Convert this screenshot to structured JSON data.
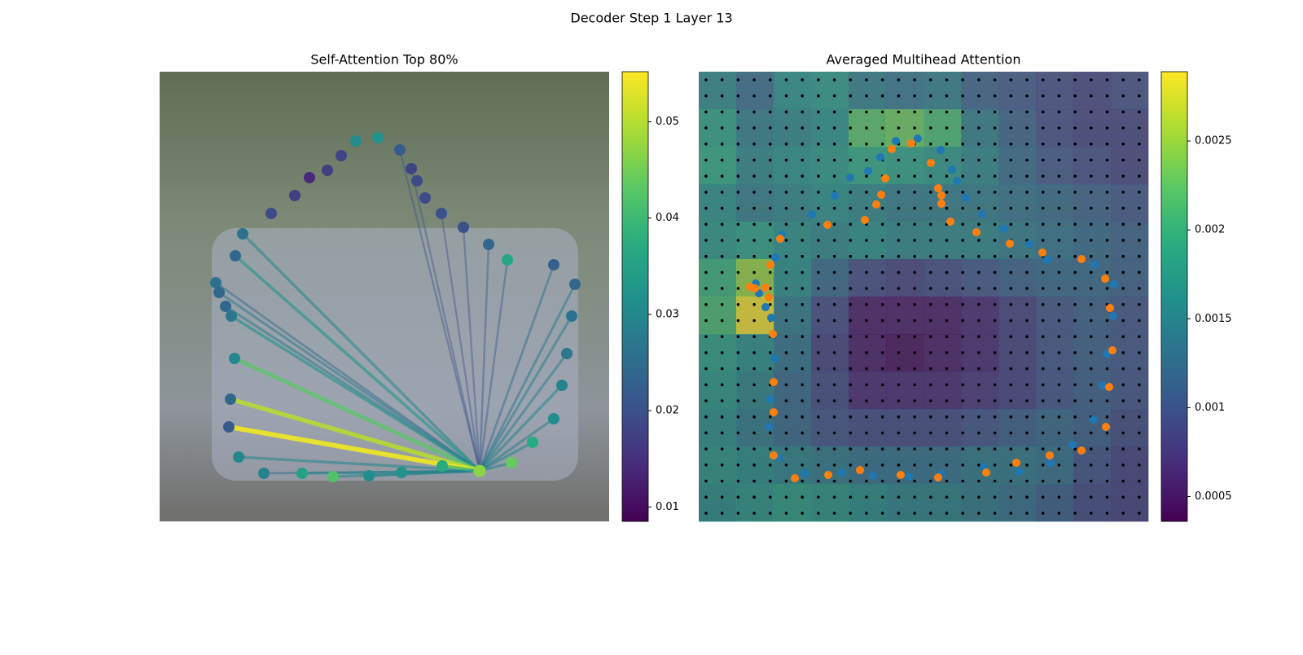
{
  "title": "Decoder Step 1 Layer 13",
  "chart_data": [
    {
      "type": "attention_scatter",
      "title": "Self-Attention Top 80%",
      "xlim": [
        0,
        552
      ],
      "ylim": [
        552,
        0
      ],
      "clim": [
        0.0085,
        0.0552
      ],
      "cticks": [
        0.01,
        0.02,
        0.03,
        0.04,
        0.05
      ],
      "colormap": "viridis",
      "query": {
        "x": 393,
        "y": 490,
        "value": 0.047
      },
      "x": [
        102,
        93,
        69,
        73,
        81,
        88,
        92,
        87,
        85,
        97,
        128,
        175,
        213,
        257,
        297,
        347,
        432,
        458,
        484,
        494,
        500,
        506,
        510,
        484,
        427,
        404,
        373,
        346,
        326,
        316,
        309,
        295,
        268,
        241,
        223,
        206,
        184,
        166,
        137
      ],
      "y": [
        199,
        226,
        259,
        271,
        288,
        300,
        352,
        402,
        436,
        473,
        493,
        493,
        497,
        496,
        492,
        484,
        480,
        455,
        426,
        385,
        346,
        300,
        261,
        237,
        231,
        212,
        191,
        174,
        155,
        134,
        119,
        96,
        81,
        85,
        103,
        121,
        130,
        152,
        174
      ],
      "values": [
        0.026,
        0.024,
        0.026,
        0.024,
        0.024,
        0.027,
        0.03,
        0.024,
        0.022,
        0.03,
        0.029,
        0.035,
        0.042,
        0.031,
        0.032,
        0.037,
        0.044,
        0.037,
        0.031,
        0.029,
        0.027,
        0.026,
        0.024,
        0.023,
        0.036,
        0.024,
        0.02,
        0.02,
        0.019,
        0.019,
        0.018,
        0.022,
        0.032,
        0.031,
        0.018,
        0.017,
        0.014,
        0.017,
        0.019
      ],
      "edge_values": [
        0.03,
        0.033,
        0.025,
        0.027,
        0.028,
        0.032,
        0.043,
        0.05,
        0.054,
        0.03,
        0.025,
        0.03,
        0.03,
        0.03,
        0.028,
        0.04,
        0.03,
        0.03,
        0.028,
        0.03,
        0.028,
        0.028,
        0.027,
        0.025,
        0.022,
        0.022,
        0.021,
        0.02,
        null,
        null,
        0.02,
        0.021,
        null,
        null,
        null,
        null,
        null,
        null,
        null
      ]
    },
    {
      "type": "heatmap_scatter",
      "title": "Averaged Multihead Attention",
      "xlim": [
        0,
        552
      ],
      "ylim": [
        552,
        0
      ],
      "clim": [
        0.00036,
        0.00289
      ],
      "cticks": [
        0.0005,
        0.001,
        0.0015,
        0.002,
        0.0025
      ],
      "colormap": "viridis",
      "heatmap": [
        [
          0.0015,
          0.0012,
          0.0016,
          0.0017,
          0.0014,
          0.0013,
          0.0014,
          0.0011,
          0.001,
          0.0009,
          0.0008,
          0.0009
        ],
        [
          0.0018,
          0.0014,
          0.0015,
          0.0016,
          0.0022,
          0.0023,
          0.0021,
          0.0014,
          0.0011,
          0.0009,
          0.0008,
          0.0008
        ],
        [
          0.0019,
          0.0015,
          0.0016,
          0.0017,
          0.0019,
          0.0018,
          0.0017,
          0.0015,
          0.0012,
          0.001,
          0.0009,
          0.0008
        ],
        [
          0.0016,
          0.0014,
          0.0015,
          0.0016,
          0.0015,
          0.0014,
          0.0014,
          0.0014,
          0.0013,
          0.0012,
          0.0011,
          0.001
        ],
        [
          0.0017,
          0.0018,
          0.0016,
          0.0015,
          0.0016,
          0.0015,
          0.0015,
          0.0015,
          0.0014,
          0.0013,
          0.0012,
          0.0011
        ],
        [
          0.002,
          0.0025,
          0.0016,
          0.0012,
          0.0009,
          0.0008,
          0.0009,
          0.001,
          0.0011,
          0.0012,
          0.0012,
          0.0011
        ],
        [
          0.0021,
          0.0029,
          0.0014,
          0.0009,
          0.0005,
          0.0005,
          0.0005,
          0.0006,
          0.0008,
          0.001,
          0.0011,
          0.001
        ],
        [
          0.0018,
          0.0016,
          0.0013,
          0.0008,
          0.0005,
          0.0004,
          0.0005,
          0.0006,
          0.0008,
          0.001,
          0.0011,
          0.001
        ],
        [
          0.0017,
          0.0015,
          0.0012,
          0.0009,
          0.0006,
          0.0006,
          0.0006,
          0.0007,
          0.0008,
          0.001,
          0.0011,
          0.001
        ],
        [
          0.0016,
          0.0014,
          0.0012,
          0.001,
          0.0009,
          0.0009,
          0.0009,
          0.001,
          0.0011,
          0.0012,
          0.0011,
          0.0009
        ],
        [
          0.0017,
          0.0016,
          0.0015,
          0.0014,
          0.0013,
          0.0013,
          0.0013,
          0.0014,
          0.0014,
          0.0013,
          0.001,
          0.0008
        ],
        [
          0.0016,
          0.0017,
          0.0018,
          0.0017,
          0.0016,
          0.0015,
          0.0015,
          0.0014,
          0.0013,
          0.0011,
          0.0009,
          0.0008
        ]
      ],
      "series": [
        {
          "color": "#1f77b4",
          "x": [
            70,
            74,
            82,
            89,
            93,
            88,
            86,
            98,
            130,
            176,
            214,
            258,
            298,
            350,
            393,
            432,
            459,
            485,
            496,
            501,
            509,
            510,
            486,
            428,
            406,
            375,
            348,
            328,
            317,
            311,
            297,
            269,
            242,
            223,
            208,
            186,
            167,
            139,
            102,
            94
          ],
          "y": [
            260,
            272,
            289,
            302,
            352,
            402,
            436,
            474,
            493,
            492,
            496,
            497,
            494,
            485,
            491,
            480,
            458,
            427,
            385,
            346,
            300,
            261,
            237,
            231,
            212,
            193,
            175,
            155,
            134,
            120,
            96,
            82,
            85,
            105,
            122,
            130,
            152,
            175,
            200,
            228
          ]
        },
        {
          "color": "#ff7f0e",
          "x": [
            63,
            69,
            82,
            88,
            86,
            100,
            91,
            92,
            92,
            92,
            118,
            159,
            198,
            248,
            294,
            353,
            390,
            431,
            470,
            500,
            504,
            508,
            505,
            499,
            470,
            422,
            382,
            341,
            309,
            298,
            298,
            294,
            285,
            261,
            237,
            229,
            224,
            218,
            204,
            158
          ],
          "y": [
            264,
            266,
            265,
            237,
            277,
            205,
            322,
            381,
            418,
            471,
            499,
            495,
            489,
            495,
            498,
            492,
            480,
            471,
            465,
            436,
            387,
            342,
            290,
            254,
            230,
            222,
            211,
            197,
            184,
            162,
            152,
            143,
            112,
            88,
            95,
            131,
            151,
            163,
            182,
            188
          ]
        }
      ]
    }
  ]
}
